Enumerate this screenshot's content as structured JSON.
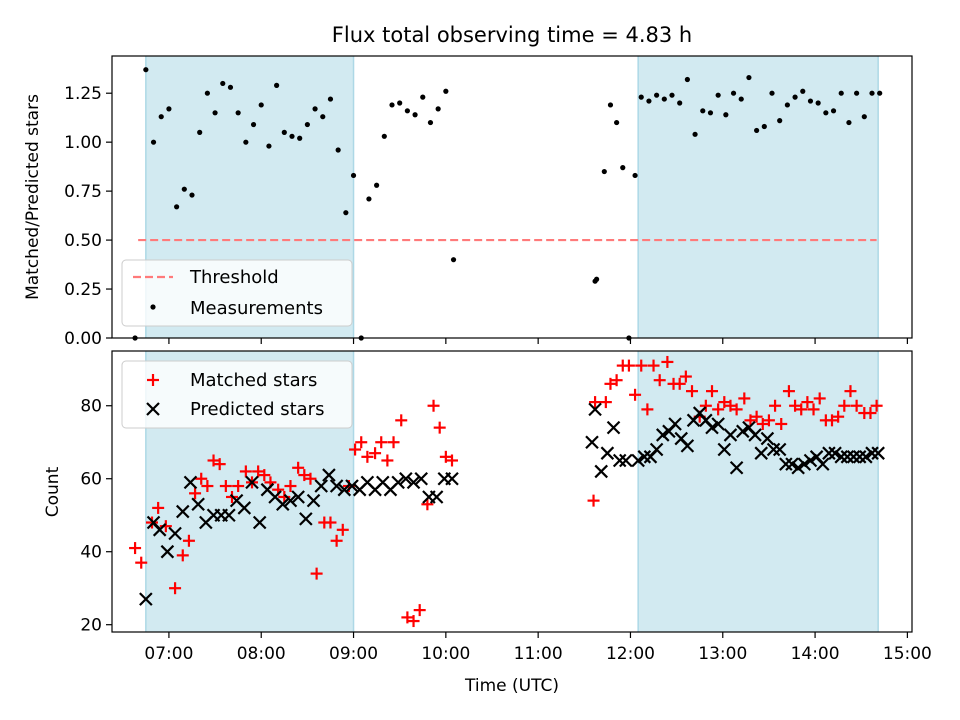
{
  "figure": {
    "title": "Flux total observing time = 4.83 h",
    "xlabel": "Time (UTC)"
  },
  "colors": {
    "shade": "#add8e6",
    "threshold": "#ff7a7a",
    "measurements": "#000000",
    "matched": "#ff0000",
    "predicted": "#000000"
  },
  "chart_data": [
    {
      "type": "scatter",
      "panel": "top",
      "ylabel": "Matched/Predicted stars",
      "xlim": [
        "06:23",
        "15:03"
      ],
      "ylim": [
        0,
        1.44
      ],
      "yticks": [
        0.0,
        0.25,
        0.5,
        0.75,
        1.0,
        1.25
      ],
      "ytick_labels": [
        "0.00",
        "0.25",
        "0.50",
        "0.75",
        "1.00",
        "1.25"
      ],
      "grid": false,
      "legend_position": "lower-left",
      "shaded_regions": [
        [
          "06:45",
          "09:00"
        ],
        [
          "12:05",
          "14:41"
        ]
      ],
      "series": [
        {
          "name": "Threshold",
          "style": "dashed-line",
          "x": [
            "06:40",
            "14:40"
          ],
          "y": [
            0.5,
            0.5
          ]
        },
        {
          "name": "Measurements",
          "style": "dot",
          "x": [
            "06:38",
            "06:45",
            "06:50",
            "06:55",
            "07:00",
            "07:05",
            "07:10",
            "07:15",
            "07:20",
            "07:25",
            "07:30",
            "07:35",
            "07:40",
            "07:45",
            "07:50",
            "07:55",
            "08:00",
            "08:05",
            "08:10",
            "08:15",
            "08:20",
            "08:25",
            "08:30",
            "08:35",
            "08:40",
            "08:45",
            "08:50",
            "08:55",
            "09:00",
            "09:05",
            "09:10",
            "09:15",
            "09:20",
            "09:25",
            "09:30",
            "09:35",
            "09:40",
            "09:45",
            "09:50",
            "09:55",
            "10:00",
            "10:05",
            "11:37",
            "11:38",
            "11:43",
            "11:47",
            "11:51",
            "11:55",
            "11:59",
            "12:03",
            "12:07",
            "12:12",
            "12:17",
            "12:22",
            "12:27",
            "12:32",
            "12:37",
            "12:42",
            "12:47",
            "12:52",
            "12:57",
            "13:02",
            "13:07",
            "13:12",
            "13:17",
            "13:22",
            "13:27",
            "13:32",
            "13:37",
            "13:42",
            "13:47",
            "13:52",
            "13:57",
            "14:02",
            "14:07",
            "14:12",
            "14:17",
            "14:22",
            "14:27",
            "14:32",
            "14:37",
            "14:42"
          ],
          "y": [
            0.0,
            1.37,
            1.0,
            1.13,
            1.17,
            0.67,
            0.76,
            0.73,
            1.05,
            1.25,
            1.15,
            1.3,
            1.28,
            1.15,
            1.0,
            1.09,
            1.19,
            0.98,
            1.29,
            1.05,
            1.03,
            1.02,
            1.09,
            1.17,
            1.13,
            1.22,
            0.96,
            0.64,
            0.83,
            0.0,
            0.71,
            0.78,
            1.03,
            1.19,
            1.2,
            1.16,
            1.14,
            1.23,
            1.1,
            1.17,
            1.26,
            0.4,
            0.29,
            0.3,
            0.85,
            1.19,
            1.1,
            0.87,
            0.0,
            0.83,
            1.23,
            1.21,
            1.24,
            1.22,
            1.24,
            1.2,
            1.32,
            1.04,
            1.16,
            1.15,
            1.24,
            1.14,
            1.25,
            1.22,
            1.33,
            1.06,
            1.08,
            1.25,
            1.11,
            1.19,
            1.23,
            1.26,
            1.21,
            1.2,
            1.15,
            1.16,
            1.25,
            1.1,
            1.25,
            1.13,
            1.25,
            1.25
          ]
        }
      ]
    },
    {
      "type": "scatter",
      "panel": "bottom",
      "ylabel": "Count",
      "xlim": [
        "06:23",
        "15:03"
      ],
      "ylim": [
        18,
        95
      ],
      "yticks": [
        20,
        40,
        60,
        80
      ],
      "ytick_labels": [
        "20",
        "40",
        "60",
        "80"
      ],
      "xticks": [
        "07:00",
        "08:00",
        "09:00",
        "10:00",
        "11:00",
        "12:00",
        "13:00",
        "14:00",
        "15:00"
      ],
      "grid": false,
      "legend_position": "upper-left",
      "shaded_regions": [
        [
          "06:45",
          "09:00"
        ],
        [
          "12:05",
          "14:41"
        ]
      ],
      "series": [
        {
          "name": "Matched stars",
          "marker": "plus",
          "x": [
            "06:38",
            "06:42",
            "06:49",
            "06:53",
            "06:58",
            "07:04",
            "07:09",
            "07:13",
            "07:17",
            "07:21",
            "07:25",
            "07:29",
            "07:33",
            "07:37",
            "07:41",
            "07:45",
            "07:50",
            "07:54",
            "07:58",
            "08:02",
            "08:06",
            "08:11",
            "08:15",
            "08:19",
            "08:24",
            "08:28",
            "08:32",
            "08:36",
            "08:41",
            "08:45",
            "08:49",
            "08:53",
            "08:57",
            "09:01",
            "09:05",
            "09:09",
            "09:14",
            "09:18",
            "09:22",
            "09:26",
            "09:31",
            "09:35",
            "09:39",
            "09:43",
            "09:48",
            "09:52",
            "09:56",
            "10:00",
            "10:04",
            "11:36",
            "11:37",
            "11:44",
            "11:47",
            "11:51",
            "11:55",
            "11:59",
            "12:03",
            "12:07",
            "12:11",
            "12:15",
            "12:19",
            "12:24",
            "12:28",
            "12:32",
            "12:36",
            "12:40",
            "12:45",
            "12:49",
            "12:53",
            "12:57",
            "13:01",
            "13:05",
            "13:09",
            "13:14",
            "13:18",
            "13:22",
            "13:26",
            "13:30",
            "13:34",
            "13:38",
            "13:43",
            "13:47",
            "13:51",
            "13:55",
            "13:59",
            "14:03",
            "14:07",
            "14:11",
            "14:15",
            "14:19",
            "14:23",
            "14:27",
            "14:32",
            "14:36",
            "14:40"
          ],
          "y": [
            41,
            37,
            48,
            52,
            47,
            30,
            39,
            43,
            56,
            60,
            58,
            65,
            64,
            58,
            55,
            58,
            62,
            59,
            62,
            61,
            59,
            57,
            55,
            58,
            63,
            61,
            60,
            34,
            48,
            48,
            43,
            46,
            58,
            68,
            70,
            66,
            67,
            70,
            65,
            70,
            76,
            22,
            21,
            24,
            53,
            80,
            74,
            66,
            65,
            54,
            81,
            81,
            86,
            87,
            91,
            91,
            83,
            91,
            79,
            91,
            87,
            92,
            86,
            86,
            88,
            84,
            77,
            80,
            84,
            79,
            81,
            80,
            79,
            82,
            76,
            77,
            75,
            76,
            80,
            75,
            84,
            80,
            79,
            81,
            79,
            82,
            76,
            76,
            77,
            80,
            84,
            80,
            78,
            78,
            80
          ]
        },
        {
          "name": "Predicted stars",
          "marker": "x",
          "x": [
            "06:45",
            "06:50",
            "06:54",
            "06:59",
            "07:04",
            "07:09",
            "07:14",
            "07:19",
            "07:24",
            "07:29",
            "07:34",
            "07:39",
            "07:44",
            "07:49",
            "07:54",
            "07:59",
            "08:04",
            "08:09",
            "08:14",
            "08:19",
            "08:24",
            "08:29",
            "08:34",
            "08:39",
            "08:44",
            "08:49",
            "08:54",
            "08:59",
            "09:04",
            "09:09",
            "09:14",
            "09:19",
            "09:24",
            "09:29",
            "09:34",
            "09:39",
            "09:44",
            "09:49",
            "09:54",
            "09:59",
            "10:04",
            "11:35",
            "11:37",
            "11:41",
            "11:45",
            "11:49",
            "11:53",
            "11:57",
            "12:05",
            "12:09",
            "12:13",
            "12:17",
            "12:21",
            "12:25",
            "12:29",
            "12:33",
            "12:37",
            "12:41",
            "12:45",
            "12:49",
            "12:53",
            "12:57",
            "13:01",
            "13:05",
            "13:09",
            "13:13",
            "13:17",
            "13:21",
            "13:25",
            "13:29",
            "13:33",
            "13:37",
            "13:41",
            "13:45",
            "13:49",
            "13:53",
            "13:57",
            "14:01",
            "14:05",
            "14:09",
            "14:13",
            "14:17",
            "14:21",
            "14:25",
            "14:29",
            "14:33",
            "14:37",
            "14:41"
          ],
          "y": [
            27,
            48,
            46,
            40,
            45,
            51,
            59,
            53,
            48,
            50,
            50,
            50,
            54,
            52,
            59,
            48,
            57,
            55,
            53,
            54,
            55,
            49,
            54,
            58,
            61,
            58,
            57,
            58,
            57,
            59,
            57,
            59,
            57,
            59,
            60,
            59,
            60,
            55,
            55,
            60,
            60,
            70,
            79,
            62,
            67,
            74,
            65,
            65,
            65,
            66,
            66,
            68,
            72,
            73,
            75,
            71,
            69,
            76,
            78,
            76,
            74,
            75,
            68,
            72,
            63,
            73,
            74,
            72,
            67,
            71,
            68,
            68,
            64,
            64,
            63,
            64,
            65,
            66,
            64,
            67,
            67,
            66,
            66,
            66,
            66,
            66,
            67,
            67
          ]
        }
      ]
    }
  ]
}
